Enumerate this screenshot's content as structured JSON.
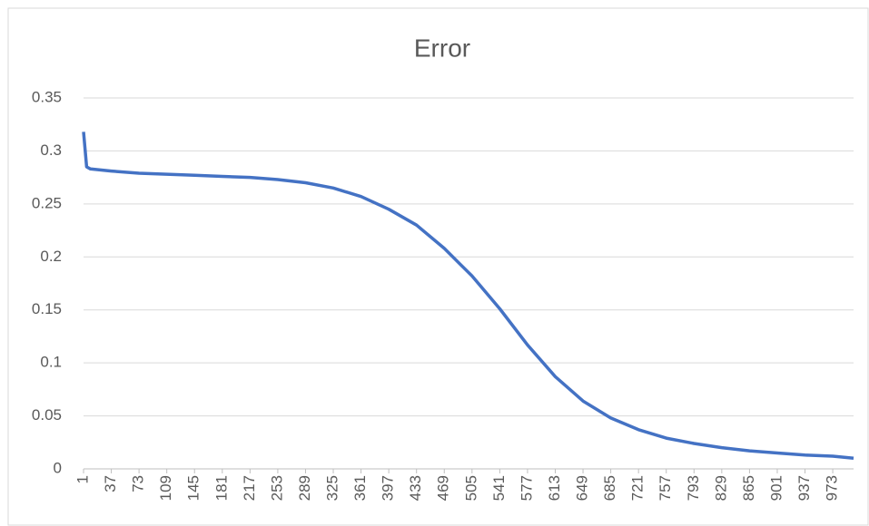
{
  "chart_data": {
    "type": "line",
    "title": "Error",
    "x": [
      1,
      5,
      10,
      37,
      73,
      109,
      145,
      181,
      217,
      253,
      289,
      325,
      361,
      397,
      433,
      469,
      505,
      541,
      577,
      613,
      649,
      685,
      721,
      757,
      793,
      829,
      865,
      901,
      937,
      973,
      1000
    ],
    "series": [
      {
        "name": "Error",
        "color": "#4472c4",
        "values": [
          0.318,
          0.285,
          0.283,
          0.281,
          0.279,
          0.278,
          0.277,
          0.276,
          0.275,
          0.273,
          0.27,
          0.265,
          0.257,
          0.245,
          0.23,
          0.208,
          0.182,
          0.151,
          0.117,
          0.087,
          0.064,
          0.048,
          0.037,
          0.029,
          0.024,
          0.02,
          0.017,
          0.015,
          0.013,
          0.012,
          0.01
        ]
      }
    ],
    "xlim": [
      1,
      1000
    ],
    "xticks": [
      1,
      37,
      73,
      109,
      145,
      181,
      217,
      253,
      289,
      325,
      361,
      397,
      433,
      469,
      505,
      541,
      577,
      613,
      649,
      685,
      721,
      757,
      793,
      829,
      865,
      901,
      937,
      973
    ],
    "ylim": [
      0,
      0.35
    ],
    "yticks": [
      0,
      0.05,
      0.1,
      0.15,
      0.2,
      0.25,
      0.3,
      0.35
    ],
    "grid": true
  }
}
